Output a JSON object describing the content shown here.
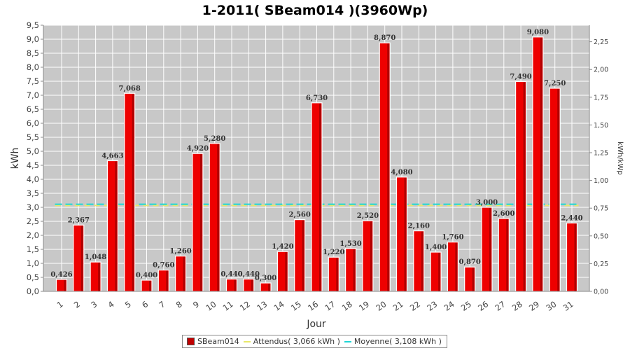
{
  "chart_data": {
    "type": "bar",
    "title": "1-2011( SBeam014 )(3960Wp)",
    "xlabel": "Jour",
    "ylabel": "kWh",
    "ylabel_right": "kWh/kWp",
    "categories": [
      "1",
      "2",
      "3",
      "4",
      "5",
      "6",
      "7",
      "8",
      "9",
      "10",
      "11",
      "12",
      "13",
      "14",
      "15",
      "16",
      "17",
      "18",
      "19",
      "20",
      "21",
      "22",
      "23",
      "24",
      "25",
      "26",
      "27",
      "28",
      "29",
      "30",
      "31"
    ],
    "series": [
      {
        "name": "SBeam014",
        "values": [
          0.426,
          2.367,
          1.048,
          4.663,
          7.068,
          0.4,
          0.76,
          1.26,
          4.92,
          5.28,
          0.44,
          0.44,
          0.3,
          1.42,
          2.56,
          6.73,
          1.22,
          1.53,
          2.52,
          8.87,
          4.08,
          2.16,
          1.4,
          1.76,
          0.87,
          3.0,
          2.6,
          7.49,
          9.08,
          7.25,
          2.44
        ],
        "data_labels": [
          "0,426",
          "2,367",
          "1,048",
          "4,663",
          "7,068",
          "0,400",
          "0,760",
          "1,260",
          "4,920",
          "5,280",
          "0,440",
          "0,440",
          "0,300",
          "1,420",
          "2,560",
          "6,730",
          "1,220",
          "1,530",
          "2,520",
          "8,870",
          "4,080",
          "2,160",
          "1,400",
          "1,760",
          "0,870",
          "3,000",
          "2,600",
          "7,490",
          "9,080",
          "7,250",
          "2,440"
        ],
        "color": "#ee0000"
      }
    ],
    "reference_lines": [
      {
        "name": "Attendus( 3,066 kWh )",
        "value": 3.066,
        "color": "#e8e86a"
      },
      {
        "name": "Moyenne( 3,108 kWh )",
        "value": 3.108,
        "color": "#1fd6d6"
      }
    ],
    "ylim": [
      0,
      9.5
    ],
    "yticks": [
      "0,0",
      "0,5",
      "1,0",
      "1,5",
      "2,0",
      "2,5",
      "3,0",
      "3,5",
      "4,0",
      "4,5",
      "5,0",
      "5,5",
      "6,0",
      "6,5",
      "7,0",
      "7,5",
      "8,0",
      "8,5",
      "9,0",
      "9,5"
    ],
    "ylim_right": [
      0,
      2.399
    ],
    "yticks_right": [
      "0,00",
      "0,25",
      "0,50",
      "0,75",
      "1,00",
      "1,25",
      "1,50",
      "1,75",
      "2,00",
      "2,25"
    ],
    "grid": true,
    "legend_position": "bottom",
    "legend": [
      "SBeam014",
      "Attendus( 3,066 kWh )",
      "Moyenne( 3,108 kWh )"
    ],
    "colors": {
      "plot_background": "#c8c8c8",
      "grid": "#ffffff",
      "bar": "#ee0000"
    }
  }
}
